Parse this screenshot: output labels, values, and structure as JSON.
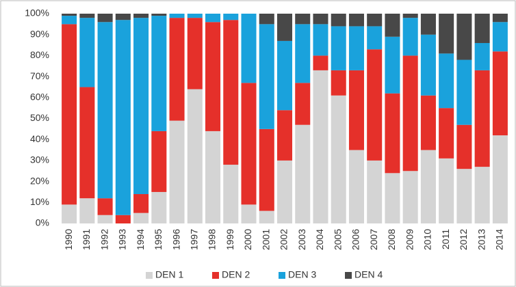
{
  "chart_data": {
    "type": "stacked_bar",
    "categories": [
      "1990",
      "1991",
      "1992",
      "1993",
      "1994",
      "1995",
      "1996",
      "1997",
      "1998",
      "1999",
      "2000",
      "2001",
      "2002",
      "2003",
      "2004",
      "2005",
      "2006",
      "2007",
      "2008",
      "2009",
      "2010",
      "2011",
      "2012",
      "2013",
      "2014"
    ],
    "series": [
      {
        "name": "DEN 1",
        "color": "#d4d4d4",
        "values": [
          9,
          12,
          4,
          0,
          5,
          15,
          49,
          64,
          44,
          28,
          9,
          6,
          30,
          47,
          73,
          61,
          35,
          30,
          24,
          25,
          35,
          31,
          26,
          27,
          42
        ]
      },
      {
        "name": "DEN 2",
        "color": "#e5302a",
        "values": [
          86,
          53,
          8,
          4,
          9,
          29,
          49,
          34,
          52,
          69,
          58,
          39,
          24,
          20,
          7,
          12,
          38,
          53,
          38,
          55,
          26,
          24,
          21,
          46,
          40
        ]
      },
      {
        "name": "DEN 3",
        "color": "#1aa2dc",
        "values": [
          4,
          33,
          84,
          93,
          84,
          55,
          2,
          2,
          4,
          3,
          33,
          50,
          33,
          28,
          15,
          21,
          21,
          11,
          27,
          18,
          29,
          26,
          31,
          13,
          14
        ]
      },
      {
        "name": "DEN 4",
        "color": "#484848",
        "values": [
          1,
          2,
          4,
          3,
          2,
          1,
          0,
          0,
          0,
          0,
          0,
          5,
          13,
          5,
          5,
          6,
          6,
          6,
          11,
          2,
          10,
          19,
          22,
          14,
          4
        ]
      }
    ],
    "ylim": [
      0,
      100
    ],
    "yticks": [
      {
        "value": 0,
        "label": "0%"
      },
      {
        "value": 10,
        "label": "10%"
      },
      {
        "value": 20,
        "label": "20%"
      },
      {
        "value": 30,
        "label": "30%"
      },
      {
        "value": 40,
        "label": "40%"
      },
      {
        "value": 50,
        "label": "50%"
      },
      {
        "value": 60,
        "label": "60%"
      },
      {
        "value": 70,
        "label": "70%"
      },
      {
        "value": 80,
        "label": "80%"
      },
      {
        "value": 90,
        "label": "90%"
      },
      {
        "value": 100,
        "label": "100%"
      }
    ],
    "grid": false,
    "legend": "bottom"
  }
}
